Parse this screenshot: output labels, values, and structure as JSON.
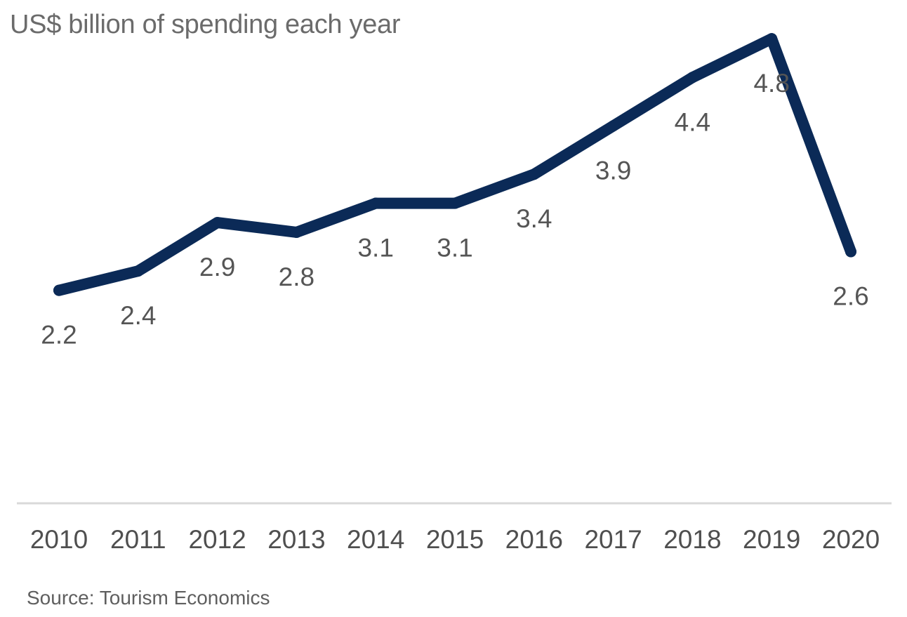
{
  "chart_data": {
    "type": "line",
    "title": "US$ billion of spending each year",
    "source": "Source: Tourism Economics",
    "xlabel": "",
    "ylabel": "",
    "categories": [
      "2010",
      "2011",
      "2012",
      "2013",
      "2014",
      "2015",
      "2016",
      "2017",
      "2018",
      "2019",
      "2020"
    ],
    "series": [
      {
        "values": [
          2.2,
          2.4,
          2.9,
          2.8,
          3.1,
          3.1,
          3.4,
          3.9,
          4.4,
          4.8,
          2.6
        ],
        "labels": [
          "2.2",
          "2.4",
          "2.9",
          "2.8",
          "3.1",
          "3.1",
          "3.4",
          "3.9",
          "4.4",
          "4.8",
          "2.6"
        ],
        "color": "#0b2a57"
      }
    ],
    "ylim": [
      0,
      5.2
    ],
    "grid": false,
    "legend": "none",
    "axis_color": "#d9d9d9"
  }
}
